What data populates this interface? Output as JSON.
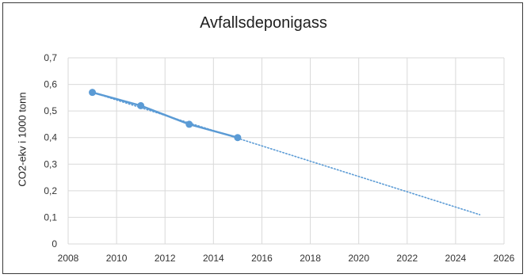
{
  "chart_data": {
    "type": "line",
    "title": "Avfallsdeponigass",
    "xlabel": "",
    "ylabel": "CO2-ekv i 1000 tonn",
    "xlim": [
      2008,
      2026
    ],
    "ylim": [
      0,
      0.7
    ],
    "x_ticks": [
      "2008",
      "2010",
      "2012",
      "2014",
      "2016",
      "2018",
      "2020",
      "2022",
      "2024",
      "2026"
    ],
    "y_ticks": [
      "0",
      "0,1",
      "0,2",
      "0,3",
      "0,4",
      "0,5",
      "0,6",
      "0,7"
    ],
    "grid": true,
    "series": [
      {
        "style": "solid-with-markers",
        "color": "#5b9bd5",
        "x": [
          2009,
          2011,
          2013,
          2015
        ],
        "y": [
          0.57,
          0.52,
          0.45,
          0.4
        ]
      },
      {
        "style": "dotted-trendline",
        "color": "#5b9bd5",
        "x": [
          2009,
          2025
        ],
        "y": [
          0.57,
          0.11
        ]
      }
    ]
  }
}
